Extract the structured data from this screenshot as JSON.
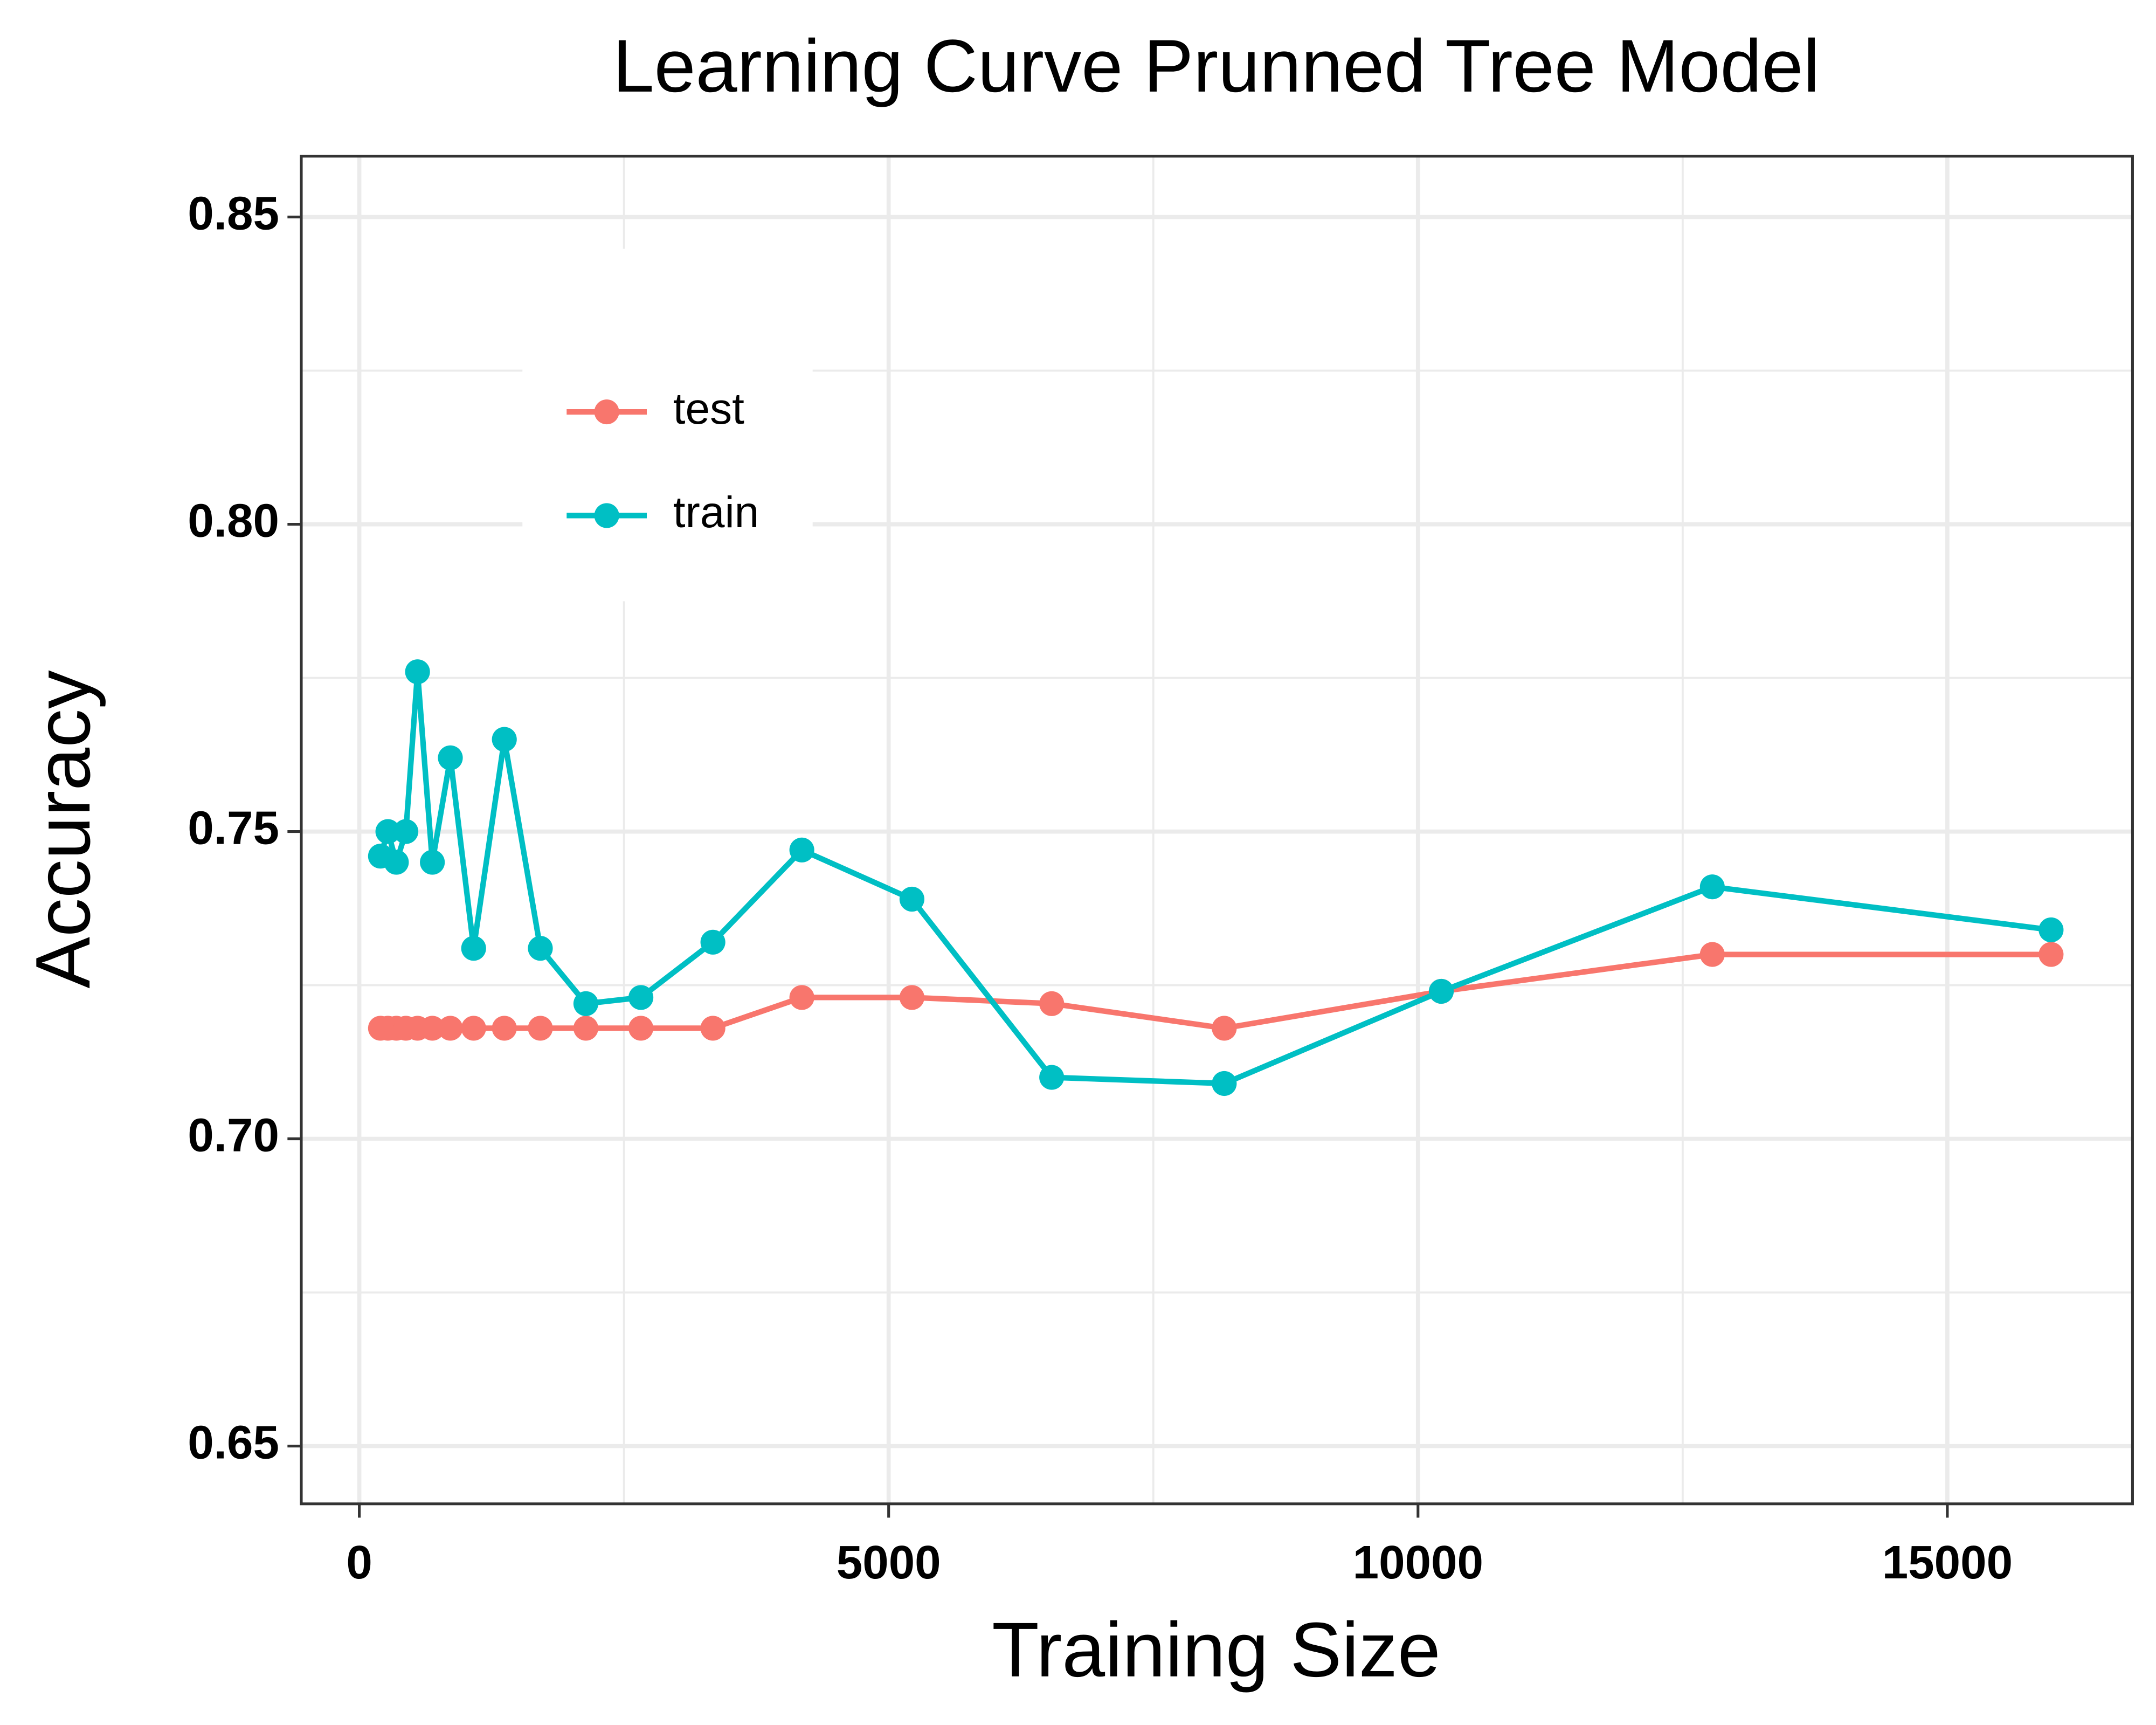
{
  "chart_data": {
    "type": "line",
    "title": "Learning Curve Prunned Tree Model",
    "x_label": "Training Size",
    "y_label": "Accuracy",
    "x": [
      200,
      270,
      350,
      440,
      550,
      690,
      860,
      1080,
      1370,
      1710,
      2140,
      2660,
      3340,
      4180,
      5220,
      6540,
      8170,
      10220,
      12780,
      15980
    ],
    "series": [
      {
        "name": "test",
        "color": "#f8766d",
        "values": [
          0.718,
          0.718,
          0.718,
          0.718,
          0.718,
          0.718,
          0.718,
          0.718,
          0.718,
          0.718,
          0.718,
          0.718,
          0.718,
          0.723,
          0.723,
          0.722,
          0.718,
          0.724,
          0.73,
          0.73
        ]
      },
      {
        "name": "train",
        "color": "#00bfc4",
        "values": [
          0.746,
          0.75,
          0.745,
          0.75,
          0.776,
          0.745,
          0.762,
          0.731,
          0.765,
          0.731,
          0.722,
          0.723,
          0.732,
          0.747,
          0.739,
          0.71,
          0.709,
          0.724,
          0.741,
          0.734
        ]
      }
    ],
    "xlim": [
      -548,
      16749
    ],
    "xticks": [
      0,
      5000,
      10000,
      15000
    ],
    "ylim": [
      0.6406,
      0.8599
    ],
    "yticks": [
      {
        "value": 0.65,
        "label": "0.65"
      },
      {
        "value": 0.7,
        "label": "0.70"
      },
      {
        "value": 0.75,
        "label": "0.75"
      },
      {
        "value": 0.8,
        "label": "0.80"
      },
      {
        "value": 0.85,
        "label": "0.85"
      }
    ],
    "grid": true,
    "legend": "top-left"
  }
}
